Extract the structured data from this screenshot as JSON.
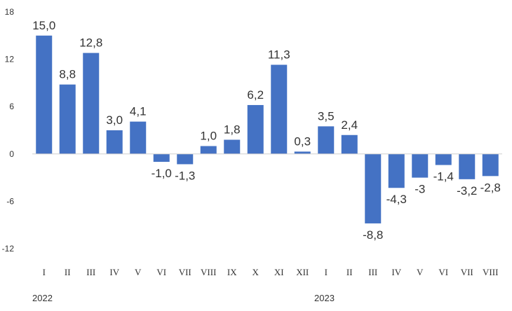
{
  "chart_data": {
    "type": "bar",
    "categories": [
      "I",
      "II",
      "III",
      "IV",
      "V",
      "VI",
      "VII",
      "VIII",
      "IX",
      "X",
      "XI",
      "XII",
      "I",
      "II",
      "III",
      "IV",
      "V",
      "VI",
      "VII",
      "VIII"
    ],
    "values": [
      15.0,
      8.8,
      12.8,
      3.0,
      4.1,
      -1.0,
      -1.3,
      1.0,
      1.8,
      6.2,
      11.3,
      0.3,
      3.5,
      2.4,
      -8.8,
      -4.3,
      -3,
      -1.4,
      -3.2,
      -2.8
    ],
    "data_labels": [
      "15,0",
      "8,8",
      "12,8",
      "3,0",
      "4,1",
      "-1,0",
      "-1,3",
      "1,0",
      "1,8",
      "6,2",
      "11,3",
      "0,3",
      "3,5",
      "2,4",
      "-8,8",
      "-4,3",
      "-3",
      "-1,4",
      "-3,2",
      "-2,8"
    ],
    "year_labels": [
      {
        "text": "2022",
        "start_index": 0
      },
      {
        "text": "2023",
        "start_index": 12
      }
    ],
    "yticks": [
      18,
      12,
      6,
      0,
      -6,
      -12
    ],
    "ytick_labels": [
      "18",
      "12",
      "6",
      "0",
      "-6",
      "-12"
    ],
    "ylim": [
      -12,
      18
    ],
    "title": "",
    "xlabel": "",
    "ylabel": "",
    "grid": false,
    "legend": "none",
    "bar_color": "#4472C4"
  }
}
